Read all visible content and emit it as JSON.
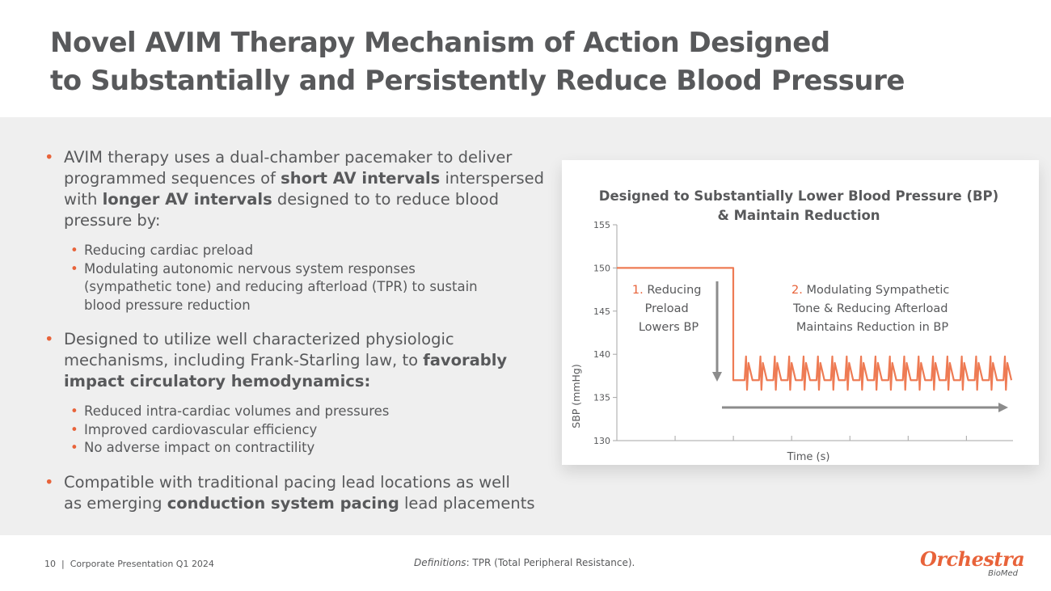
{
  "title": {
    "line1": "Novel AVIM Therapy Mechanism of Action Designed",
    "line2": "to Substantially and Persistently Reduce Blood Pressure"
  },
  "bullets": {
    "b1": {
      "l1": "AVIM therapy uses a dual-chamber pacemaker to deliver",
      "l2a": "programmed sequences of ",
      "l2b": "short AV intervals",
      "l2c": " interspersed",
      "l3a": "with ",
      "l3b": "longer AV intervals",
      "l3c": " designed to to reduce blood",
      "l4": "pressure by:",
      "sub": [
        {
          "lines": [
            "Reducing cardiac preload"
          ]
        },
        {
          "lines": [
            "Modulating autonomic nervous system responses",
            "(sympathetic tone) and reducing afterload (TPR) to sustain",
            "blood pressure reduction"
          ]
        }
      ]
    },
    "b2": {
      "l1": "Designed to utilize well characterized physiologic",
      "l2a": "mechanisms, including Frank-Starling law, to ",
      "l2b": "favorably",
      "l3": "impact circulatory hemodynamics:",
      "sub": [
        "Reduced intra-cardiac volumes and pressures",
        "Improved cardiovascular efficiency",
        "No adverse impact on contractility"
      ]
    },
    "b3": {
      "l1": "Compatible with traditional pacing lead locations as well",
      "l2a": "as emerging ",
      "l2b": "conduction system pacing",
      "l2c": " lead placements"
    }
  },
  "chart_data": {
    "type": "line",
    "title_line1": "Designed to Substantially Lower Blood Pressure (BP)",
    "title_line2": "& Maintain Reduction",
    "xlabel": "Time (s)",
    "ylabel": "SBP (mmHg)",
    "ylim": [
      130,
      155
    ],
    "yticks": [
      130,
      135,
      140,
      145,
      150,
      155
    ],
    "baseline_level": 150,
    "reduced_level": 137,
    "pulse_peak": 139,
    "pulse_count": 19,
    "annotation1": {
      "num": "1.",
      "lines": [
        "Reducing",
        "Preload",
        "Lowers BP"
      ]
    },
    "annotation2": {
      "num": "2.",
      "lines": [
        "Modulating Sympathetic",
        "Tone & Reducing Afterload",
        "Maintains Reduction in BP"
      ]
    },
    "colors": {
      "series": "#ee7b54",
      "accent": "#e8633a",
      "axis": "#a6a6a6",
      "arrow": "#8c8c8c",
      "text": "#58595b"
    }
  },
  "footer": {
    "page": "10",
    "sep": "|",
    "deck": "Corporate Presentation Q1 2024",
    "def_label": "Definitions",
    "def_text": ": TPR (Total Peripheral Resistance)."
  },
  "logo": {
    "name": "Orchestra",
    "sub": "BioMed"
  }
}
